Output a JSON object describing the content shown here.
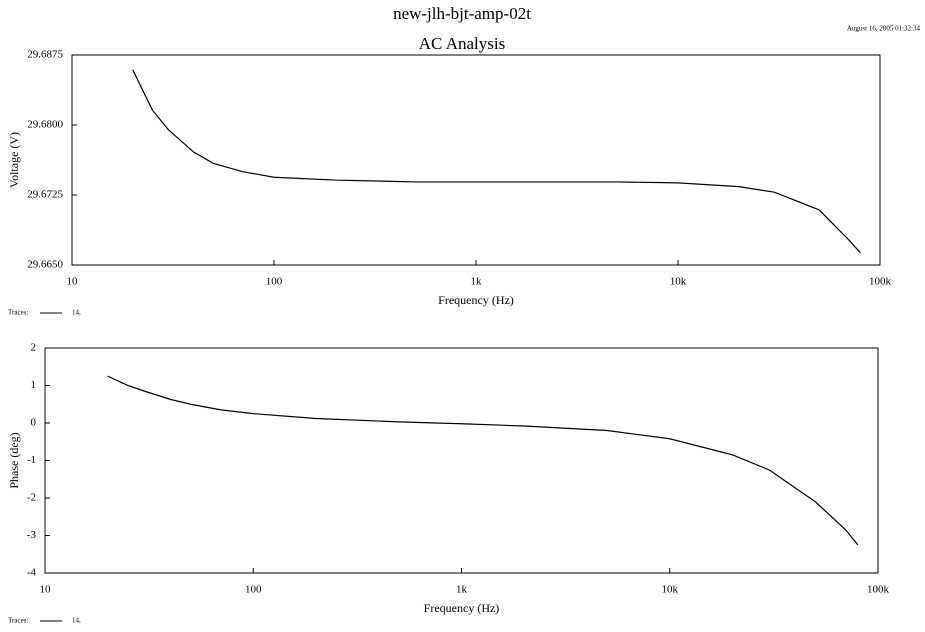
{
  "chart_data": [
    {
      "type": "line",
      "title": "new-jlh-bjt-amp-02t",
      "subtitle": "AC Analysis",
      "annotation": "August 16, 2005 01:32:34",
      "xlabel": "Frequency (Hz)",
      "ylabel": "Voltage (V)",
      "xscale": "log",
      "xlim": [
        10,
        100000
      ],
      "xticks": [
        10,
        100,
        {
          "value": 1000,
          "label": "1k"
        },
        {
          "value": 10000,
          "label": "10k"
        },
        {
          "value": 100000,
          "label": "100k"
        }
      ],
      "ylim": [
        29.665,
        29.6875
      ],
      "yticks": [
        {
          "value": 29.665,
          "label": "29.6650"
        },
        29.6725,
        {
          "value": 29.68,
          "label": "29.6800"
        },
        29.6875
      ],
      "legend_title": "Traces:",
      "x": [
        20,
        25,
        30,
        40,
        50,
        70,
        100,
        200,
        500,
        1000,
        2000,
        5000,
        10000,
        20000,
        30000,
        50000,
        70000,
        80000
      ],
      "series": [
        {
          "name": "14,",
          "color": "#000000",
          "values": [
            29.6859,
            29.6816,
            29.6795,
            29.6771,
            29.6759,
            29.675,
            29.6744,
            29.6741,
            29.6739,
            29.6739,
            29.6739,
            29.6739,
            29.6738,
            29.6734,
            29.6728,
            29.6709,
            29.6677,
            29.6663
          ]
        }
      ]
    },
    {
      "type": "line",
      "xlabel": "Frequency (Hz)",
      "ylabel": "Phase (deg)",
      "xscale": "log",
      "xlim": [
        10,
        100000
      ],
      "xticks": [
        10,
        100,
        {
          "value": 1000,
          "label": "1k"
        },
        {
          "value": 10000,
          "label": "10k"
        },
        {
          "value": 100000,
          "label": "100k"
        }
      ],
      "ylim": [
        -4,
        2
      ],
      "yticks": [
        -4,
        -3,
        -2,
        -1,
        0,
        1,
        2
      ],
      "legend_title": "Traces:",
      "x": [
        20,
        25,
        30,
        40,
        50,
        70,
        100,
        200,
        500,
        1000,
        2000,
        5000,
        10000,
        20000,
        30000,
        50000,
        70000,
        80000
      ],
      "series": [
        {
          "name": "14,",
          "color": "#000000",
          "values": [
            1.25,
            1.0,
            0.85,
            0.63,
            0.5,
            0.35,
            0.25,
            0.12,
            0.03,
            -0.02,
            -0.08,
            -0.2,
            -0.42,
            -0.85,
            -1.25,
            -2.1,
            -2.85,
            -3.25
          ]
        }
      ]
    }
  ]
}
